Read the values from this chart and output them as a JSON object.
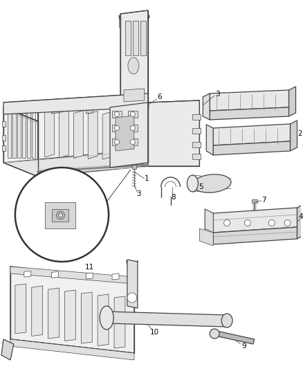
{
  "bg_color": "#ffffff",
  "fig_width": 4.38,
  "fig_height": 5.33,
  "dpi": 100,
  "line_color": "#444444",
  "label_color": "#000000",
  "label_fontsize": 7.5,
  "lw_main": 0.9,
  "lw_thin": 0.5
}
